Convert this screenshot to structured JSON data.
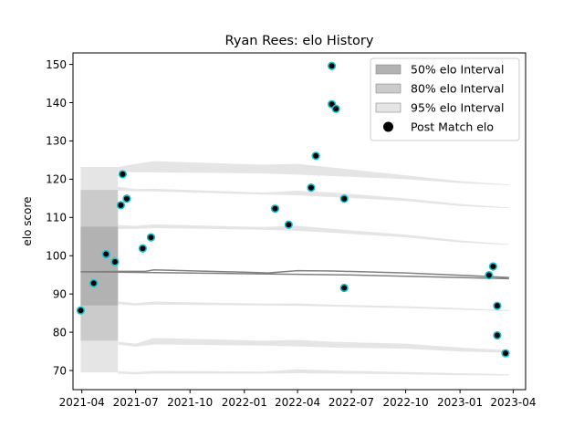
{
  "chart_data": {
    "type": "scatter",
    "title": "Ryan Rees: elo History",
    "xlabel": "",
    "ylabel": "elo score",
    "xlim": [
      "2021-03-17",
      "2023-04-22"
    ],
    "ylim": [
      65,
      153
    ],
    "xticks": [
      "2021-04",
      "2021-07",
      "2021-10",
      "2022-01",
      "2022-04",
      "2022-07",
      "2022-10",
      "2023-01",
      "2023-04"
    ],
    "yticks": [
      70,
      80,
      90,
      100,
      110,
      120,
      130,
      140,
      150
    ],
    "grid": false,
    "legend_position": "top-right",
    "legend": [
      {
        "label": "50% elo Interval",
        "color": "#b2b2b2"
      },
      {
        "label": "80% elo Interval",
        "color": "#cbcbcb"
      },
      {
        "label": "95% elo Interval",
        "color": "#e5e5e5"
      },
      {
        "label": "Post Match elo",
        "color": "#000000"
      }
    ],
    "colors": {
      "marker_face": "#000000",
      "marker_edge": "#17becf",
      "mean_line": "#808080"
    },
    "series": [
      {
        "name": "Post Match elo",
        "points": [
          [
            "2021-03-30",
            85.7
          ],
          [
            "2021-04-21",
            92.8
          ],
          [
            "2021-05-12",
            100.4
          ],
          [
            "2021-05-27",
            98.4
          ],
          [
            "2021-06-06",
            113.2
          ],
          [
            "2021-06-09",
            121.3
          ],
          [
            "2021-06-16",
            114.9
          ],
          [
            "2021-07-13",
            101.9
          ],
          [
            "2021-07-27",
            104.8
          ],
          [
            "2022-02-22",
            112.3
          ],
          [
            "2022-03-17",
            108.1
          ],
          [
            "2022-04-24",
            117.8
          ],
          [
            "2022-05-02",
            126.1
          ],
          [
            "2022-05-29",
            149.6
          ],
          [
            "2022-05-29",
            139.6
          ],
          [
            "2022-06-05",
            138.4
          ],
          [
            "2022-06-19",
            114.9
          ],
          [
            "2022-06-19",
            91.6
          ],
          [
            "2023-02-19",
            94.9
          ],
          [
            "2023-02-26",
            97.2
          ],
          [
            "2023-03-05",
            86.9
          ],
          [
            "2023-03-05",
            79.2
          ],
          [
            "2023-03-19",
            74.5
          ]
        ]
      },
      {
        "name": "",
        "kind": "mean",
        "points": [
          [
            "2021-03-30",
            95.8
          ],
          [
            "2021-06-01",
            95.9
          ],
          [
            "2021-07-16",
            95.9
          ],
          [
            "2021-08-01",
            96.3
          ],
          [
            "2022-01-01",
            95.7
          ],
          [
            "2022-02-10",
            95.5
          ],
          [
            "2022-04-01",
            96.1
          ],
          [
            "2022-06-01",
            96.0
          ],
          [
            "2022-10-01",
            95.5
          ],
          [
            "2023-01-01",
            94.9
          ],
          [
            "2023-03-25",
            94.3
          ]
        ]
      },
      {
        "name": "",
        "kind": "mean",
        "points": [
          [
            "2021-03-30",
            95.8
          ],
          [
            "2022-06-19",
            95.0
          ],
          [
            "2023-03-25",
            94.0
          ]
        ]
      }
    ],
    "bands": [
      {
        "name": "95% elo Interval",
        "level": 0.95,
        "segments": [
          {
            "x": [
              "2021-03-30",
              "2021-06-01"
            ],
            "upper": [
              123.2,
              123.2
            ],
            "lower": [
              69.5,
              69.5
            ]
          },
          {
            "upper_line": [
              [
                "2021-06-01",
                123.2
              ],
              [
                "2021-07-01",
                124.0
              ],
              [
                "2021-08-01",
                124.7
              ],
              [
                "2022-02-01",
                123.8
              ],
              [
                "2022-04-01",
                124.0
              ],
              [
                "2022-06-01",
                123.0
              ],
              [
                "2022-10-01",
                121.0
              ],
              [
                "2023-01-01",
                119.5
              ],
              [
                "2023-03-25",
                118.6
              ]
            ],
            "lower_line": [
              [
                "2021-06-01",
                122.0
              ],
              [
                "2021-07-01",
                121.8
              ],
              [
                "2021-08-01",
                121.8
              ],
              [
                "2022-02-01",
                121.5
              ],
              [
                "2022-04-01",
                121.2
              ],
              [
                "2022-06-01",
                120.8
              ],
              [
                "2022-10-01",
                120.0
              ],
              [
                "2023-01-01",
                119.0
              ],
              [
                "2023-03-25",
                118.4
              ]
            ]
          },
          {
            "upper_line": [
              [
                "2021-06-01",
                118.0
              ],
              [
                "2021-07-01",
                117.4
              ],
              [
                "2021-08-01",
                117.5
              ],
              [
                "2022-02-01",
                116.5
              ],
              [
                "2022-04-01",
                117.0
              ],
              [
                "2022-06-01",
                116.5
              ],
              [
                "2022-10-01",
                115.0
              ],
              [
                "2023-01-01",
                113.5
              ],
              [
                "2023-03-25",
                112.6
              ]
            ],
            "lower_line": [
              [
                "2021-06-01",
                117.0
              ],
              [
                "2021-07-01",
                116.8
              ],
              [
                "2021-08-01",
                116.8
              ],
              [
                "2022-02-01",
                116.0
              ],
              [
                "2022-04-01",
                115.8
              ],
              [
                "2022-06-01",
                115.3
              ],
              [
                "2022-10-01",
                114.3
              ],
              [
                "2023-01-01",
                113.0
              ],
              [
                "2023-03-25",
                112.4
              ]
            ]
          },
          {
            "upper_line": [
              [
                "2021-06-01",
                108.0
              ],
              [
                "2021-07-01",
                107.8
              ],
              [
                "2021-08-01",
                108.2
              ],
              [
                "2022-02-01",
                107.5
              ],
              [
                "2022-04-01",
                107.8
              ],
              [
                "2022-06-01",
                107.0
              ],
              [
                "2022-10-01",
                105.5
              ],
              [
                "2023-01-01",
                104.0
              ],
              [
                "2023-03-25",
                103.0
              ]
            ],
            "lower_line": [
              [
                "2021-06-01",
                107.0
              ],
              [
                "2021-07-01",
                107.0
              ],
              [
                "2021-08-01",
                107.2
              ],
              [
                "2022-02-01",
                106.8
              ],
              [
                "2022-04-01",
                106.5
              ],
              [
                "2022-06-01",
                106.0
              ],
              [
                "2022-10-01",
                104.8
              ],
              [
                "2023-01-01",
                103.5
              ],
              [
                "2023-03-25",
                102.8
              ]
            ]
          },
          {
            "upper_line": [
              [
                "2021-06-01",
                88.0
              ],
              [
                "2021-07-01",
                87.6
              ],
              [
                "2021-08-01",
                88.0
              ],
              [
                "2022-02-01",
                87.5
              ],
              [
                "2022-04-01",
                87.5
              ],
              [
                "2022-06-01",
                87.2
              ],
              [
                "2022-10-01",
                86.8
              ],
              [
                "2023-01-01",
                86.3
              ],
              [
                "2023-03-25",
                85.8
              ]
            ],
            "lower_line": [
              [
                "2021-06-01",
                87.3
              ],
              [
                "2021-07-01",
                87.0
              ],
              [
                "2021-08-01",
                87.2
              ],
              [
                "2022-02-01",
                87.0
              ],
              [
                "2022-04-01",
                86.9
              ],
              [
                "2022-06-01",
                86.7
              ],
              [
                "2022-10-01",
                86.3
              ],
              [
                "2023-01-01",
                85.9
              ],
              [
                "2023-03-25",
                85.5
              ]
            ]
          },
          {
            "upper_line": [
              [
                "2021-06-01",
                77.5
              ],
              [
                "2021-07-01",
                77.0
              ],
              [
                "2021-08-01",
                78.5
              ],
              [
                "2022-02-01",
                77.8
              ],
              [
                "2022-04-01",
                78.0
              ],
              [
                "2022-06-01",
                77.5
              ],
              [
                "2022-10-01",
                77.0
              ],
              [
                "2023-01-01",
                76.0
              ],
              [
                "2023-03-25",
                75.3
              ]
            ],
            "lower_line": [
              [
                "2021-06-01",
                76.8
              ],
              [
                "2021-07-01",
                76.2
              ],
              [
                "2021-08-01",
                76.8
              ],
              [
                "2022-02-01",
                76.5
              ],
              [
                "2022-04-01",
                76.3
              ],
              [
                "2022-06-01",
                76.0
              ],
              [
                "2022-10-01",
                75.7
              ],
              [
                "2023-01-01",
                75.0
              ],
              [
                "2023-03-25",
                74.6
              ]
            ]
          },
          {
            "upper_line": [
              [
                "2021-06-01",
                69.8
              ],
              [
                "2021-07-01",
                69.6
              ],
              [
                "2021-08-01",
                69.9
              ],
              [
                "2022-02-01",
                69.7
              ],
              [
                "2022-04-01",
                70.3
              ],
              [
                "2022-06-01",
                70.0
              ],
              [
                "2022-10-01",
                69.6
              ],
              [
                "2023-01-01",
                69.3
              ],
              [
                "2023-03-25",
                69.0
              ]
            ],
            "lower_line": [
              [
                "2021-06-01",
                69.2
              ],
              [
                "2021-07-01",
                69.0
              ],
              [
                "2021-08-01",
                69.2
              ],
              [
                "2022-02-01",
                69.2
              ],
              [
                "2022-04-01",
                69.3
              ],
              [
                "2022-06-01",
                69.2
              ],
              [
                "2022-10-01",
                69.0
              ],
              [
                "2023-01-01",
                68.8
              ],
              [
                "2023-03-25",
                68.7
              ]
            ]
          }
        ]
      },
      {
        "name": "80% elo Interval",
        "level": 0.8,
        "segments": [
          {
            "x": [
              "2021-03-30",
              "2021-06-01"
            ],
            "upper": [
              117.2,
              117.2
            ],
            "lower": [
              77.8,
              77.8
            ]
          }
        ]
      },
      {
        "name": "50% elo Interval",
        "level": 0.5,
        "segments": [
          {
            "x": [
              "2021-03-30",
              "2021-06-01"
            ],
            "upper": [
              107.6,
              107.6
            ],
            "lower": [
              87.0,
              87.0
            ]
          }
        ]
      }
    ]
  }
}
